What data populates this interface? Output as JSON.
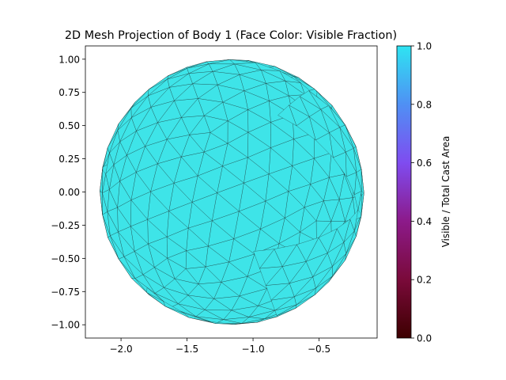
{
  "chart_data": {
    "type": "mesh",
    "title": "2D Mesh Projection of Body 1 (Face Color: Visible Fraction)",
    "xlabel": "",
    "ylabel": "",
    "xlim": [
      -2.27,
      -0.06
    ],
    "ylim": [
      -1.1,
      1.1
    ],
    "x_ticks": [
      -2.0,
      -1.5,
      -1.0,
      -0.5
    ],
    "x_tick_labels": [
      "−2.0",
      "−1.5",
      "−1.0",
      "−0.5"
    ],
    "y_ticks": [
      1.0,
      0.75,
      0.5,
      0.25,
      0.0,
      -0.25,
      -0.5,
      -0.75,
      -1.0
    ],
    "y_tick_labels": [
      "1.00",
      "0.75",
      "0.50",
      "0.25",
      "0.00",
      "−0.25",
      "−0.50",
      "−0.75",
      "−1.00"
    ],
    "body": {
      "center": [
        -1.16,
        0.0
      ],
      "radius": 1.0,
      "face_value": 1.0,
      "face_color": "#3ee4e8",
      "edge_color": "#1a1a1a"
    },
    "colorbar": {
      "label": "Visible / Total Cast Area",
      "min": 0.0,
      "max": 1.0,
      "ticks": [
        0.0,
        0.2,
        0.4,
        0.6,
        0.8,
        1.0
      ],
      "tick_labels": [
        "0.0",
        "0.2",
        "0.4",
        "0.6",
        "0.8",
        "1.0"
      ],
      "colormap": [
        "#3d0000",
        "#7a0a3a",
        "#8c1a8a",
        "#7f4cf0",
        "#4f90f4",
        "#2ee4f2"
      ]
    },
    "grid": false,
    "legend": "none"
  }
}
